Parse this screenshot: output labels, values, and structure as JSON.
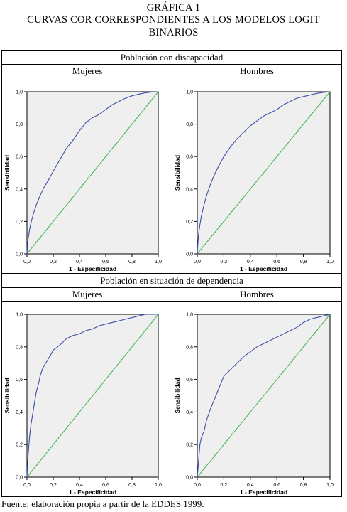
{
  "figure": {
    "title_line1": "GRÁFICA 1",
    "title_line2": "CURVAS COR CORRESPONDIENTES A LOS MODELOS LOGIT",
    "title_line3": "BINARIOS",
    "panel_top_title": "Población con discapacidad",
    "panel_bottom_title": "Población en situación de dependencia",
    "source": "Fuente: elaboración propia a partir de la EDDES 1999."
  },
  "chart_data": [
    {
      "type": "line",
      "group": "Población con discapacidad",
      "panel": "Mujeres",
      "xlabel": "1 - Especificidad",
      "ylabel": "Sensibilidad",
      "xlim": [
        0,
        1
      ],
      "ylim": [
        0,
        1
      ],
      "xticks": [
        "0,0",
        "0,2",
        "0,4",
        "0,6",
        "0,8",
        "1,0"
      ],
      "yticks": [
        "0,0",
        "0,2",
        "0,4",
        "0,6",
        "0,8",
        "1,0"
      ],
      "grid": false,
      "colors": {
        "curve": "#3a4ea8",
        "reference": "#3cb44a",
        "plot_bg": "#efefef"
      },
      "series": [
        {
          "x": [
            0,
            0.005,
            0.01,
            0.02,
            0.03,
            0.05,
            0.07,
            0.1,
            0.13,
            0.16,
            0.2,
            0.25,
            0.3,
            0.35,
            0.4,
            0.45,
            0.5,
            0.55,
            0.6,
            0.65,
            0.7,
            0.75,
            0.8,
            0.85,
            0.9,
            0.95,
            1.0
          ],
          "y": [
            0,
            0.06,
            0.1,
            0.15,
            0.19,
            0.25,
            0.3,
            0.36,
            0.41,
            0.45,
            0.51,
            0.58,
            0.65,
            0.7,
            0.76,
            0.81,
            0.84,
            0.86,
            0.89,
            0.92,
            0.94,
            0.96,
            0.975,
            0.985,
            0.993,
            0.998,
            1.0
          ]
        },
        {
          "x": [
            0,
            1
          ],
          "y": [
            0,
            1
          ]
        }
      ]
    },
    {
      "type": "line",
      "group": "Población con discapacidad",
      "panel": "Hombres",
      "xlabel": "1 - Especificidad",
      "ylabel": "Sensibilidad",
      "xlim": [
        0,
        1
      ],
      "ylim": [
        0,
        1
      ],
      "xticks": [
        "0,0",
        "0,2",
        "0,4",
        "0,6",
        "0,8",
        "1,0"
      ],
      "yticks": [
        "0,0",
        "0,2",
        "0,4",
        "0,6",
        "0,8",
        "1,0"
      ],
      "grid": false,
      "colors": {
        "curve": "#3a4ea8",
        "reference": "#3cb44a",
        "plot_bg": "#efefef"
      },
      "series": [
        {
          "x": [
            0,
            0.005,
            0.01,
            0.02,
            0.03,
            0.05,
            0.07,
            0.1,
            0.13,
            0.16,
            0.2,
            0.25,
            0.3,
            0.35,
            0.4,
            0.45,
            0.5,
            0.55,
            0.6,
            0.65,
            0.7,
            0.75,
            0.8,
            0.85,
            0.9,
            0.95,
            1.0
          ],
          "y": [
            0,
            0.07,
            0.12,
            0.18,
            0.23,
            0.3,
            0.36,
            0.43,
            0.49,
            0.54,
            0.6,
            0.66,
            0.71,
            0.75,
            0.79,
            0.82,
            0.85,
            0.87,
            0.89,
            0.92,
            0.94,
            0.96,
            0.97,
            0.98,
            0.99,
            0.996,
            1.0
          ]
        },
        {
          "x": [
            0,
            1
          ],
          "y": [
            0,
            1
          ]
        }
      ]
    },
    {
      "type": "line",
      "group": "Población en situación de dependencia",
      "panel": "Mujeres",
      "xlabel": "1 - Especificidad",
      "ylabel": "Sensibilidad",
      "xlim": [
        0,
        1
      ],
      "ylim": [
        0,
        1
      ],
      "xticks": [
        "0,0",
        "0,2",
        "0,4",
        "0,6",
        "0,8",
        "1,0"
      ],
      "yticks": [
        "0,0",
        "0,2",
        "0,4",
        "0,6",
        "0,8",
        "1,0"
      ],
      "grid": false,
      "colors": {
        "curve": "#3a4ea8",
        "reference": "#3cb44a",
        "plot_bg": "#efefef"
      },
      "series": [
        {
          "x": [
            0,
            0.005,
            0.01,
            0.02,
            0.03,
            0.05,
            0.07,
            0.09,
            0.1,
            0.12,
            0.15,
            0.18,
            0.2,
            0.25,
            0.3,
            0.35,
            0.4,
            0.45,
            0.5,
            0.55,
            0.6,
            0.65,
            0.7,
            0.75,
            0.8,
            0.85,
            0.9,
            1.0
          ],
          "y": [
            0,
            0.08,
            0.15,
            0.25,
            0.32,
            0.42,
            0.52,
            0.58,
            0.62,
            0.67,
            0.71,
            0.75,
            0.78,
            0.81,
            0.85,
            0.87,
            0.88,
            0.9,
            0.91,
            0.93,
            0.94,
            0.95,
            0.96,
            0.97,
            0.98,
            0.99,
            1.0,
            1.0
          ]
        },
        {
          "x": [
            0,
            1
          ],
          "y": [
            0,
            1
          ]
        }
      ]
    },
    {
      "type": "line",
      "group": "Población en situación de dependencia",
      "panel": "Hombres",
      "xlabel": "1 - Especificidad",
      "ylabel": "Sensibilidad",
      "xlim": [
        0,
        1
      ],
      "ylim": [
        0,
        1
      ],
      "xticks": [
        "0,0",
        "0,2",
        "0,4",
        "0,6",
        "0,8",
        "1,0"
      ],
      "yticks": [
        "0,0",
        "0,2",
        "0,4",
        "0,6",
        "0,8",
        "1,0"
      ],
      "grid": false,
      "colors": {
        "curve": "#3a4ea8",
        "reference": "#3cb44a",
        "plot_bg": "#efefef"
      },
      "series": [
        {
          "x": [
            0,
            0.005,
            0.01,
            0.015,
            0.02,
            0.03,
            0.05,
            0.07,
            0.1,
            0.12,
            0.15,
            0.18,
            0.2,
            0.25,
            0.3,
            0.35,
            0.4,
            0.45,
            0.5,
            0.55,
            0.6,
            0.65,
            0.7,
            0.75,
            0.8,
            0.85,
            0.9,
            0.95,
            1.0
          ],
          "y": [
            0,
            0.05,
            0.1,
            0.15,
            0.2,
            0.24,
            0.28,
            0.35,
            0.42,
            0.46,
            0.52,
            0.58,
            0.62,
            0.66,
            0.7,
            0.74,
            0.77,
            0.8,
            0.82,
            0.84,
            0.86,
            0.88,
            0.9,
            0.92,
            0.95,
            0.97,
            0.98,
            0.99,
            1.0
          ]
        },
        {
          "x": [
            0,
            1
          ],
          "y": [
            0,
            1
          ]
        }
      ]
    }
  ]
}
